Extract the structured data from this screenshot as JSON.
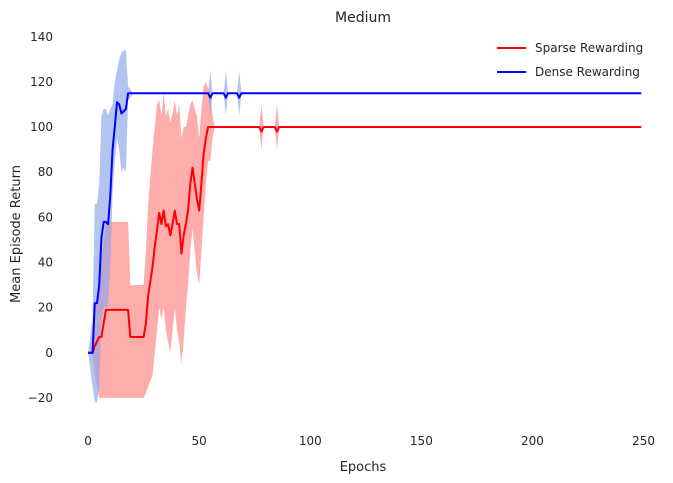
{
  "chart_data": {
    "type": "line",
    "title": "Medium",
    "xlabel": "Epochs",
    "ylabel": "Mean Episode Return",
    "xlim": [
      -5,
      252
    ],
    "ylim": [
      -32,
      143
    ],
    "xticks": [
      0,
      50,
      100,
      150,
      200,
      250
    ],
    "yticks": [
      -20,
      0,
      20,
      40,
      60,
      80,
      100,
      120,
      140
    ],
    "grid": false,
    "legend_position": "top-right",
    "series": [
      {
        "name": "Sparse Rewarding",
        "color": "#ff0000",
        "band_color": "#ff8080",
        "points": [
          [
            0,
            0,
            0,
            0
          ],
          [
            2,
            0,
            0,
            0
          ],
          [
            3,
            3,
            -10,
            15
          ],
          [
            5,
            7,
            -20,
            35
          ],
          [
            6,
            7,
            -20,
            40
          ],
          [
            8,
            19,
            -20,
            58
          ],
          [
            10,
            19,
            -20,
            58
          ],
          [
            15,
            19,
            -20,
            58
          ],
          [
            18,
            19,
            -20,
            58
          ],
          [
            19,
            7,
            -20,
            30
          ],
          [
            22,
            7,
            -20,
            30
          ],
          [
            25,
            7,
            -20,
            30
          ],
          [
            26,
            13,
            -18,
            45
          ],
          [
            27,
            25,
            -15,
            65
          ],
          [
            29,
            38,
            -10,
            90
          ],
          [
            30,
            47,
            0,
            100
          ],
          [
            31,
            54,
            10,
            110
          ],
          [
            32,
            62,
            20,
            112
          ],
          [
            33,
            57,
            15,
            105
          ],
          [
            34,
            63,
            20,
            115
          ],
          [
            35,
            56,
            10,
            105
          ],
          [
            36,
            57,
            5,
            108
          ],
          [
            37,
            52,
            0,
            102
          ],
          [
            38,
            57,
            10,
            106
          ],
          [
            39,
            63,
            20,
            112
          ],
          [
            40,
            57,
            10,
            105
          ],
          [
            41,
            57,
            5,
            110
          ],
          [
            42,
            44,
            -5,
            95
          ],
          [
            43,
            52,
            5,
            100
          ],
          [
            44,
            57,
            20,
            100
          ],
          [
            45,
            63,
            30,
            105
          ],
          [
            46,
            75,
            45,
            110
          ],
          [
            47,
            82,
            55,
            112
          ],
          [
            48,
            75,
            45,
            108
          ],
          [
            49,
            68,
            35,
            105
          ],
          [
            50,
            63,
            30,
            95
          ],
          [
            51,
            75,
            45,
            108
          ],
          [
            52,
            88,
            60,
            118
          ],
          [
            53,
            95,
            75,
            120
          ],
          [
            54,
            100,
            85,
            117
          ],
          [
            55,
            100,
            85,
            115
          ],
          [
            56,
            100,
            95,
            105
          ],
          [
            57,
            100,
            100,
            100
          ],
          [
            77,
            100,
            100,
            100
          ],
          [
            78,
            98,
            90,
            110
          ],
          [
            79,
            100,
            100,
            100
          ],
          [
            84,
            100,
            100,
            100
          ],
          [
            85,
            98,
            90,
            110
          ],
          [
            86,
            100,
            100,
            100
          ],
          [
            249,
            100,
            100,
            100
          ]
        ]
      },
      {
        "name": "Dense Rewarding",
        "color": "#0000ff",
        "band_color": "#8ca4e8",
        "points": [
          [
            0,
            0,
            0,
            0
          ],
          [
            2,
            0,
            -15,
            15
          ],
          [
            3,
            22,
            -22,
            66
          ],
          [
            4,
            22,
            -22,
            66
          ],
          [
            5,
            30,
            -15,
            75
          ],
          [
            6,
            51,
            15,
            105
          ],
          [
            7,
            58,
            20,
            108
          ],
          [
            8,
            58,
            20,
            108
          ],
          [
            9,
            57,
            20,
            105
          ],
          [
            10,
            70,
            40,
            108
          ],
          [
            11,
            90,
            70,
            110
          ],
          [
            12,
            100,
            85,
            120
          ],
          [
            13,
            111,
            95,
            125
          ],
          [
            14,
            110,
            90,
            130
          ],
          [
            15,
            106,
            80,
            133
          ],
          [
            16,
            107,
            82,
            134
          ],
          [
            17,
            108,
            80,
            134
          ],
          [
            18,
            115,
            112,
            118
          ],
          [
            19,
            115,
            113,
            117
          ],
          [
            20,
            115,
            115,
            115
          ],
          [
            54,
            115,
            115,
            115
          ],
          [
            55,
            113,
            105,
            125
          ],
          [
            56,
            115,
            115,
            115
          ],
          [
            61,
            115,
            115,
            115
          ],
          [
            62,
            113,
            105,
            125
          ],
          [
            63,
            115,
            115,
            115
          ],
          [
            67,
            115,
            115,
            115
          ],
          [
            68,
            113,
            105,
            125
          ],
          [
            69,
            115,
            115,
            115
          ],
          [
            249,
            115,
            115,
            115
          ]
        ]
      }
    ]
  }
}
